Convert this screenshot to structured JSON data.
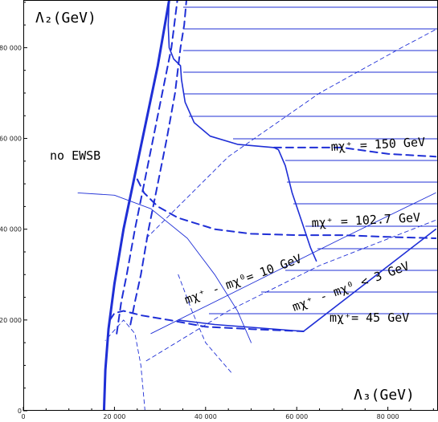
{
  "chart_data": {
    "type": "line",
    "xlabel": "Λ₃(GeV)",
    "ylabel": "Λ₂(GeV)",
    "xlim": [
      0,
      91000
    ],
    "ylim": [
      0,
      90500
    ],
    "xticks": [
      {
        "v": 0,
        "label": "0"
      },
      {
        "v": 20000,
        "label": "20 000"
      },
      {
        "v": 40000,
        "label": "40 000"
      },
      {
        "v": 60000,
        "label": "60 000"
      },
      {
        "v": 80000,
        "label": "80 000"
      }
    ],
    "yticks": [
      {
        "v": 0,
        "label": "0"
      },
      {
        "v": 20000,
        "label": "20 000"
      },
      {
        "v": 40000,
        "label": "40 000"
      },
      {
        "v": 60000,
        "label": "60 000"
      },
      {
        "v": 80000,
        "label": "80 000"
      }
    ],
    "line_color": "#1f2fd6",
    "annotations": {
      "no_ewsb": "no EWSB",
      "m150": "mχ⁺ = 150 GeV",
      "m102": "mχ⁺ = 102.7 GeV",
      "m45": "mχ⁺= 45 GeV",
      "diff10": "mχ⁺ - mχ⁰= 10 GeV",
      "diff3": "mχ⁺ - mχ⁰ < 3 GeV"
    },
    "series": [
      {
        "style": "thick-solid",
        "points": [
          [
            17700,
            0
          ],
          [
            18000,
            9000
          ],
          [
            18700,
            18000
          ],
          [
            20000,
            28000
          ],
          [
            22000,
            40000
          ],
          [
            24500,
            52000
          ],
          [
            27000,
            64000
          ],
          [
            29500,
            76000
          ],
          [
            32000,
            90500
          ]
        ]
      },
      {
        "style": "thick-dashed",
        "points": [
          [
            20500,
            17000
          ],
          [
            21500,
            24000
          ],
          [
            22700,
            30000
          ],
          [
            24500,
            40000
          ],
          [
            26500,
            50000
          ],
          [
            28500,
            60000
          ],
          [
            30500,
            70000
          ],
          [
            32500,
            80000
          ],
          [
            33800,
            90500
          ]
        ]
      },
      {
        "style": "thick-dashed",
        "points": [
          [
            23500,
            19000
          ],
          [
            24500,
            24000
          ],
          [
            25800,
            30000
          ],
          [
            27500,
            40000
          ],
          [
            29500,
            50000
          ],
          [
            31500,
            60000
          ],
          [
            33300,
            70000
          ],
          [
            34500,
            80000
          ],
          [
            35300,
            85000
          ],
          [
            35800,
            90500
          ]
        ]
      },
      {
        "style": "thin-dashed",
        "points": [
          [
            26700,
            0
          ],
          [
            25800,
            10000
          ],
          [
            24500,
            17000
          ],
          [
            22000,
            20000
          ],
          [
            18000,
            15500
          ]
        ]
      },
      {
        "style": "thin-dashed",
        "points": [
          [
            27000,
            38000
          ],
          [
            45000,
            56000
          ],
          [
            65000,
            70000
          ],
          [
            83000,
            80000
          ],
          [
            90500,
            84000
          ]
        ]
      },
      {
        "style": "thin-dashed",
        "points": [
          [
            27000,
            11000
          ],
          [
            45000,
            22000
          ],
          [
            65000,
            32000
          ],
          [
            90500,
            42000
          ]
        ]
      },
      {
        "style": "thin-solid",
        "points": [
          [
            12000,
            48000
          ],
          [
            20000,
            47500
          ],
          [
            28000,
            44500
          ],
          [
            36000,
            38000
          ],
          [
            42000,
            30000
          ],
          [
            47000,
            22000
          ],
          [
            50000,
            15000
          ]
        ]
      },
      {
        "style": "thin-solid",
        "points": [
          [
            28000,
            17000
          ],
          [
            50000,
            28000
          ],
          [
            70000,
            38000
          ],
          [
            90500,
            48000
          ]
        ]
      },
      {
        "style": "thin-dashed",
        "points": [
          [
            34000,
            30000
          ],
          [
            37000,
            22000
          ],
          [
            40000,
            15000
          ],
          [
            46000,
            8000
          ]
        ]
      },
      {
        "style": "medium-solid",
        "points": [
          [
            32000,
            90500
          ],
          [
            31800,
            85000
          ],
          [
            32000,
            80000
          ],
          [
            33000,
            77500
          ],
          [
            34500,
            76000
          ],
          [
            34700,
            73000
          ],
          [
            35500,
            68000
          ],
          [
            37500,
            63500
          ],
          [
            41000,
            60500
          ],
          [
            47000,
            58700
          ],
          [
            55000,
            58000
          ],
          [
            56000,
            57500
          ],
          [
            57500,
            54000
          ],
          [
            59000,
            48000
          ],
          [
            61000,
            42000
          ],
          [
            63000,
            36000
          ],
          [
            64300,
            33000
          ]
        ]
      },
      {
        "style": "medium-dashed",
        "points": [
          [
            55000,
            58000
          ],
          [
            62000,
            58000
          ],
          [
            70000,
            58000
          ],
          [
            80000,
            56600
          ],
          [
            90500,
            56000
          ]
        ]
      },
      {
        "style": "medium-dashed",
        "points": [
          [
            25000,
            51000
          ],
          [
            26500,
            48000
          ],
          [
            29500,
            45000
          ],
          [
            34000,
            42500
          ],
          [
            42000,
            40000
          ],
          [
            50000,
            39000
          ],
          [
            60000,
            38700
          ],
          [
            70000,
            38700
          ],
          [
            80000,
            38300
          ],
          [
            90500,
            38000
          ]
        ]
      },
      {
        "style": "medium-dashed",
        "points": [
          [
            19000,
            20000
          ],
          [
            20000,
            21500
          ],
          [
            22000,
            22000
          ],
          [
            26000,
            21000
          ],
          [
            32000,
            20000
          ],
          [
            40000,
            18500
          ],
          [
            50000,
            18000
          ],
          [
            61500,
            17500
          ]
        ]
      },
      {
        "style": "medium-solid",
        "points": [
          [
            34000,
            20000
          ],
          [
            42000,
            19000
          ],
          [
            61500,
            17500
          ],
          [
            90500,
            40000
          ]
        ]
      }
    ]
  }
}
